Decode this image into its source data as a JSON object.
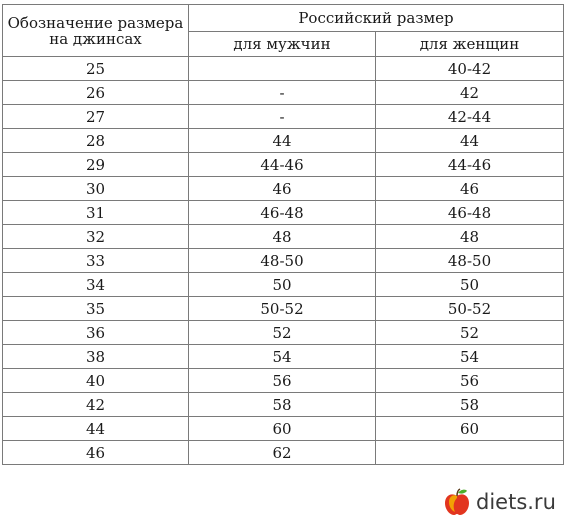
{
  "table": {
    "header": {
      "col1": "Обозначение размера на джинсах",
      "group": "Российский размер",
      "men": "для мужчин",
      "women": "для женщин"
    },
    "rows": [
      [
        "25",
        "",
        "40-42"
      ],
      [
        "26",
        "-",
        "42"
      ],
      [
        "27",
        "-",
        "42-44"
      ],
      [
        "28",
        "44",
        "44"
      ],
      [
        "29",
        "44-46",
        "44-46"
      ],
      [
        "30",
        "46",
        "46"
      ],
      [
        "31",
        "46-48",
        "46-48"
      ],
      [
        "32",
        "48",
        "48"
      ],
      [
        "33",
        "48-50",
        "48-50"
      ],
      [
        "34",
        "50",
        "50"
      ],
      [
        "35",
        "50-52",
        "50-52"
      ],
      [
        "36",
        "52",
        "52"
      ],
      [
        "38",
        "54",
        "54"
      ],
      [
        "40",
        "56",
        "56"
      ],
      [
        "42",
        "58",
        "58"
      ],
      [
        "44",
        "60",
        "60"
      ],
      [
        "46",
        "62",
        ""
      ]
    ]
  },
  "watermark": {
    "text": "diets.ru",
    "logo_icon": "apple-icon",
    "colors": {
      "apple_red": "#e2351f",
      "apple_yellow": "#f4b400",
      "leaf_green": "#4caf2a"
    }
  }
}
